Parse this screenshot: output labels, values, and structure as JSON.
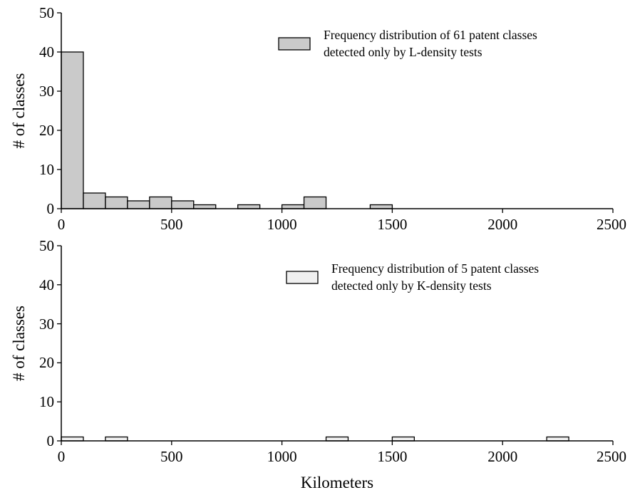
{
  "colors": {
    "bar_stroke": "#000000",
    "axis": "#000000",
    "background": "#ffffff"
  },
  "chart_data": [
    {
      "type": "bar",
      "bin_width": 100,
      "xlim": [
        0,
        2500
      ],
      "ylim": [
        0,
        50
      ],
      "xticks": [
        "0",
        "500",
        "1000",
        "1500",
        "2000",
        "2500"
      ],
      "yticks": [
        "0",
        "10",
        "20",
        "30",
        "40",
        "50"
      ],
      "ylabel": "# of classes",
      "xlabel": "",
      "grid": false,
      "legend_position": "top-right",
      "series": [
        {
          "name_line1": "Frequency distribution of 61 patent classes",
          "name_line2": "detected only by L-density tests",
          "color": "#cacaca",
          "bins": [
            {
              "x0": 0,
              "x1": 100,
              "count": 40
            },
            {
              "x0": 100,
              "x1": 200,
              "count": 4
            },
            {
              "x0": 200,
              "x1": 300,
              "count": 3
            },
            {
              "x0": 300,
              "x1": 400,
              "count": 2
            },
            {
              "x0": 400,
              "x1": 500,
              "count": 3
            },
            {
              "x0": 500,
              "x1": 600,
              "count": 2
            },
            {
              "x0": 600,
              "x1": 700,
              "count": 1
            },
            {
              "x0": 800,
              "x1": 900,
              "count": 1
            },
            {
              "x0": 1000,
              "x1": 1100,
              "count": 1
            },
            {
              "x0": 1100,
              "x1": 1200,
              "count": 3
            },
            {
              "x0": 1400,
              "x1": 1500,
              "count": 1
            }
          ]
        }
      ]
    },
    {
      "type": "bar",
      "bin_width": 100,
      "xlim": [
        0,
        2500
      ],
      "ylim": [
        0,
        50
      ],
      "xticks": [
        "0",
        "500",
        "1000",
        "1500",
        "2000",
        "2500"
      ],
      "yticks": [
        "0",
        "10",
        "20",
        "30",
        "40",
        "50"
      ],
      "ylabel": "# of classes",
      "xlabel": "Kilometers",
      "grid": false,
      "legend_position": "top-right",
      "series": [
        {
          "name_line1": "Frequency distribution of 5 patent classes",
          "name_line2": "detected only by K-density tests",
          "color": "#f0f0f0",
          "bins": [
            {
              "x0": 0,
              "x1": 100,
              "count": 1
            },
            {
              "x0": 200,
              "x1": 300,
              "count": 1
            },
            {
              "x0": 1200,
              "x1": 1300,
              "count": 1
            },
            {
              "x0": 1500,
              "x1": 1600,
              "count": 1
            },
            {
              "x0": 2200,
              "x1": 2300,
              "count": 1
            }
          ]
        }
      ]
    }
  ]
}
